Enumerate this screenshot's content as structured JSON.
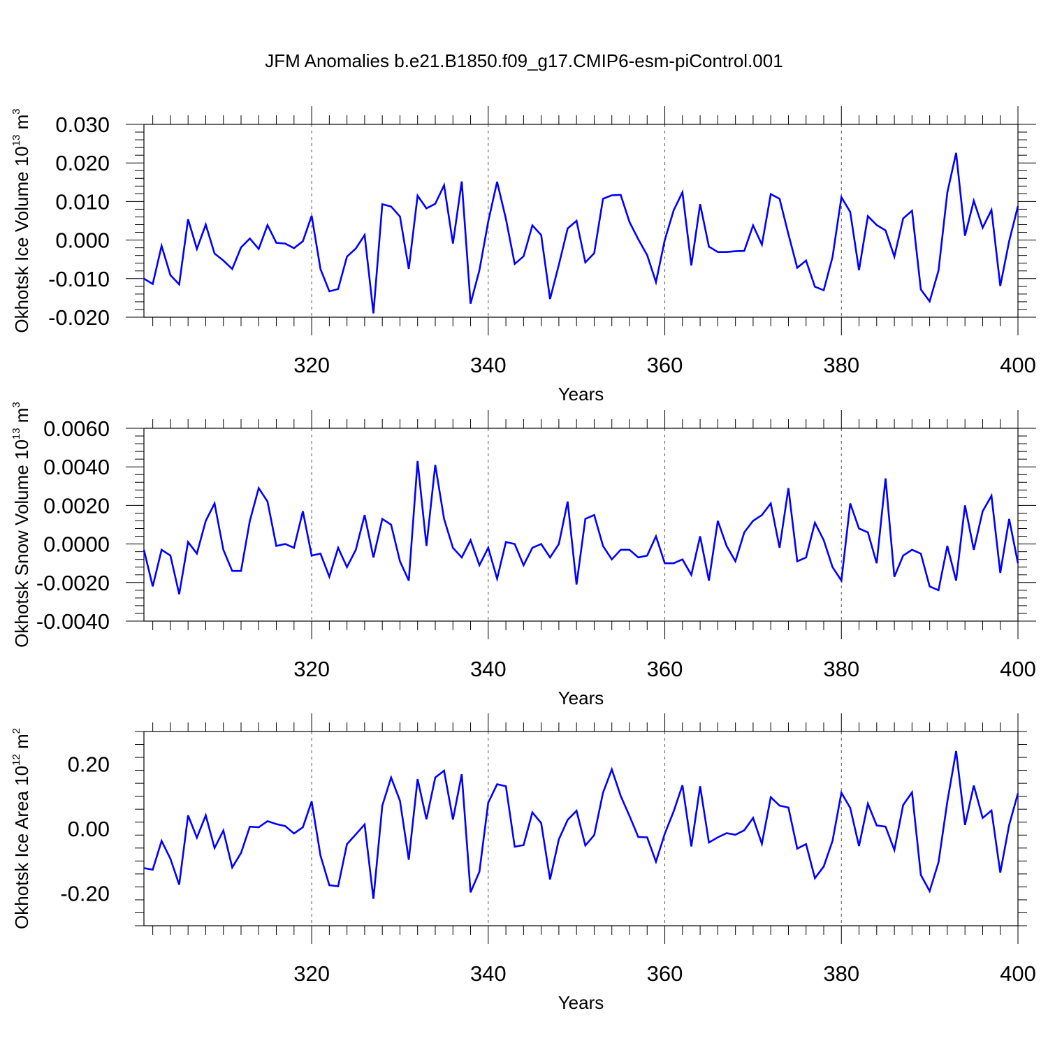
{
  "title": "JFM Anomalies b.e21.B1850.f09_g17.CMIP6-esm-piControl.001",
  "line_color": "#0000ff",
  "chart_data": [
    {
      "type": "line",
      "ylabel": {
        "base": "Okhotsk Ice Volume 10",
        "exp": "13",
        "unit": " m",
        "unit_exp": "3"
      },
      "xlabel": "Years",
      "xlim": [
        301,
        400
      ],
      "ylim": [
        -0.02,
        0.03
      ],
      "yticks": [
        -0.02,
        -0.01,
        0.0,
        0.01,
        0.02,
        0.03
      ],
      "yticklabels": [
        "-0.020",
        "-0.010",
        "0.000",
        "0.010",
        "0.020",
        "0.030"
      ],
      "xticks": [
        320,
        340,
        360,
        380,
        400
      ],
      "xticklabels": [
        "320",
        "340",
        "360",
        "380",
        "400"
      ],
      "grid_x": true,
      "series": [
        {
          "x_start": 301,
          "values": [
            -0.01,
            -0.0114,
            -0.0015,
            -0.0091,
            -0.0115,
            0.0054,
            -0.0023,
            0.004,
            -0.0035,
            -0.0053,
            -0.0075,
            -0.0019,
            0.0004,
            -0.0023,
            0.0039,
            -0.0007,
            -0.0009,
            -0.0021,
            -0.0003,
            0.0063,
            -0.0075,
            -0.0133,
            -0.0127,
            -0.0043,
            -0.0022,
            0.0013,
            -0.019,
            0.0093,
            0.0087,
            0.0061,
            -0.0075,
            0.0115,
            0.0082,
            0.0094,
            0.0142,
            -0.0009,
            0.0152,
            -0.0165,
            -0.0078,
            0.0048,
            0.0151,
            0.0055,
            -0.0062,
            -0.0042,
            0.0038,
            0.0013,
            -0.0153,
            -0.0064,
            0.003,
            0.005,
            -0.0058,
            -0.0034,
            0.0107,
            0.0116,
            0.0117,
            0.0047,
            0.0002,
            -0.0039,
            -0.0109,
            0.0,
            0.0077,
            0.0124,
            -0.0066,
            0.0093,
            -0.0017,
            -0.0031,
            -0.0031,
            -0.0029,
            -0.0028,
            0.0038,
            -0.0012,
            0.0119,
            0.0107,
            0.0015,
            -0.0072,
            -0.0053,
            -0.0121,
            -0.013,
            -0.0044,
            0.0111,
            0.0073,
            -0.0078,
            0.0062,
            0.0039,
            0.0025,
            -0.0043,
            0.0056,
            0.0076,
            -0.0128,
            -0.0159,
            -0.0079,
            0.0123,
            0.0226,
            0.0011,
            0.0102,
            0.0032,
            0.0078,
            -0.0119,
            -0.0003,
            0.0088
          ]
        }
      ]
    },
    {
      "type": "line",
      "ylabel": {
        "base": "Okhotsk Snow Volume 10",
        "exp": "13",
        "unit": " m",
        "unit_exp": "3"
      },
      "xlabel": "Years",
      "xlim": [
        301,
        400
      ],
      "ylim": [
        -0.004,
        0.006
      ],
      "yticks": [
        -0.004,
        -0.002,
        0.0,
        0.002,
        0.004,
        0.006
      ],
      "yticklabels": [
        "-0.0040",
        "-0.0020",
        "0.0000",
        "0.0020",
        "0.0040",
        "0.0060"
      ],
      "xticks": [
        320,
        340,
        360,
        380,
        400
      ],
      "xticklabels": [
        "320",
        "340",
        "360",
        "380",
        "400"
      ],
      "grid_x": true,
      "series": [
        {
          "x_start": 301,
          "values": [
            -0.0003,
            -0.0022,
            -0.0003,
            -0.0006,
            -0.0026,
            0.0001,
            -0.0005,
            0.0012,
            0.0021,
            -0.0003,
            -0.0014,
            -0.0014,
            0.0012,
            0.0029,
            0.0022,
            -0.0001,
            0.0,
            -0.0002,
            0.0017,
            -0.0006,
            -0.0005,
            -0.0017,
            -0.0002,
            -0.0012,
            -0.0003,
            0.0015,
            -0.0007,
            0.0013,
            0.001,
            -0.0009,
            -0.0019,
            0.0043,
            -0.0001,
            0.0041,
            0.0013,
            -0.0002,
            -0.0007,
            0.0002,
            -0.0011,
            -0.0002,
            -0.0018,
            0.0001,
            0.0,
            -0.0011,
            -0.0002,
            0.0,
            -0.0007,
            0.0,
            0.0022,
            -0.0021,
            0.0013,
            0.0015,
            -0.0001,
            -0.0008,
            -0.0003,
            -0.0003,
            -0.0007,
            -0.0006,
            0.0004,
            -0.001,
            -0.001,
            -0.0008,
            -0.0016,
            0.0004,
            -0.0019,
            0.0012,
            -0.0001,
            -0.0009,
            0.0006,
            0.0012,
            0.0015,
            0.0021,
            -0.0002,
            0.0029,
            -0.0009,
            -0.0007,
            0.0011,
            0.0002,
            -0.0012,
            -0.0019,
            0.0021,
            0.0008,
            0.0006,
            -0.001,
            0.0034,
            -0.0017,
            -0.0006,
            -0.0003,
            -0.0005,
            -0.0022,
            -0.0024,
            -0.0001,
            -0.0019,
            0.002,
            -0.0003,
            0.0017,
            0.0025,
            -0.0015,
            0.0013,
            -0.001
          ]
        }
      ]
    },
    {
      "type": "line",
      "ylabel": {
        "base": "Okhotsk Ice Area 10",
        "exp": "12",
        "unit": " m",
        "unit_exp": "2"
      },
      "xlabel": "Years",
      "xlim": [
        301,
        400
      ],
      "ylim": [
        -0.3,
        0.3
      ],
      "yticks": [
        -0.2,
        0.0,
        0.2
      ],
      "yticklabels": [
        "-0.20",
        "0.00",
        "0.20"
      ],
      "xticks": [
        320,
        340,
        360,
        380,
        400
      ],
      "xticklabels": [
        "320",
        "340",
        "360",
        "380",
        "400"
      ],
      "grid_x": true,
      "series": [
        {
          "x_start": 301,
          "values": [
            -0.122,
            -0.127,
            -0.038,
            -0.093,
            -0.173,
            0.041,
            -0.028,
            0.041,
            -0.06,
            -0.006,
            -0.12,
            -0.075,
            0.006,
            0.004,
            0.023,
            0.014,
            0.008,
            -0.015,
            0.004,
            0.084,
            -0.083,
            -0.175,
            -0.178,
            -0.048,
            -0.018,
            0.013,
            -0.217,
            0.071,
            0.158,
            0.086,
            -0.096,
            0.153,
            0.029,
            0.158,
            0.179,
            0.028,
            0.168,
            -0.197,
            -0.133,
            0.08,
            0.137,
            0.131,
            -0.056,
            -0.051,
            0.05,
            0.017,
            -0.157,
            -0.033,
            0.027,
            0.055,
            -0.052,
            -0.02,
            0.111,
            0.183,
            0.101,
            0.039,
            -0.026,
            -0.027,
            -0.102,
            -0.016,
            0.053,
            0.134,
            -0.055,
            0.131,
            -0.043,
            -0.027,
            -0.014,
            -0.019,
            -0.005,
            0.033,
            -0.047,
            0.097,
            0.071,
            0.065,
            -0.062,
            -0.048,
            -0.153,
            -0.117,
            -0.038,
            0.111,
            0.064,
            -0.054,
            0.077,
            0.01,
            0.006,
            -0.066,
            0.073,
            0.112,
            -0.143,
            -0.193,
            -0.104,
            0.083,
            0.24,
            0.011,
            0.133,
            0.033,
            0.056,
            -0.136,
            0.011,
            0.109
          ]
        }
      ]
    }
  ]
}
